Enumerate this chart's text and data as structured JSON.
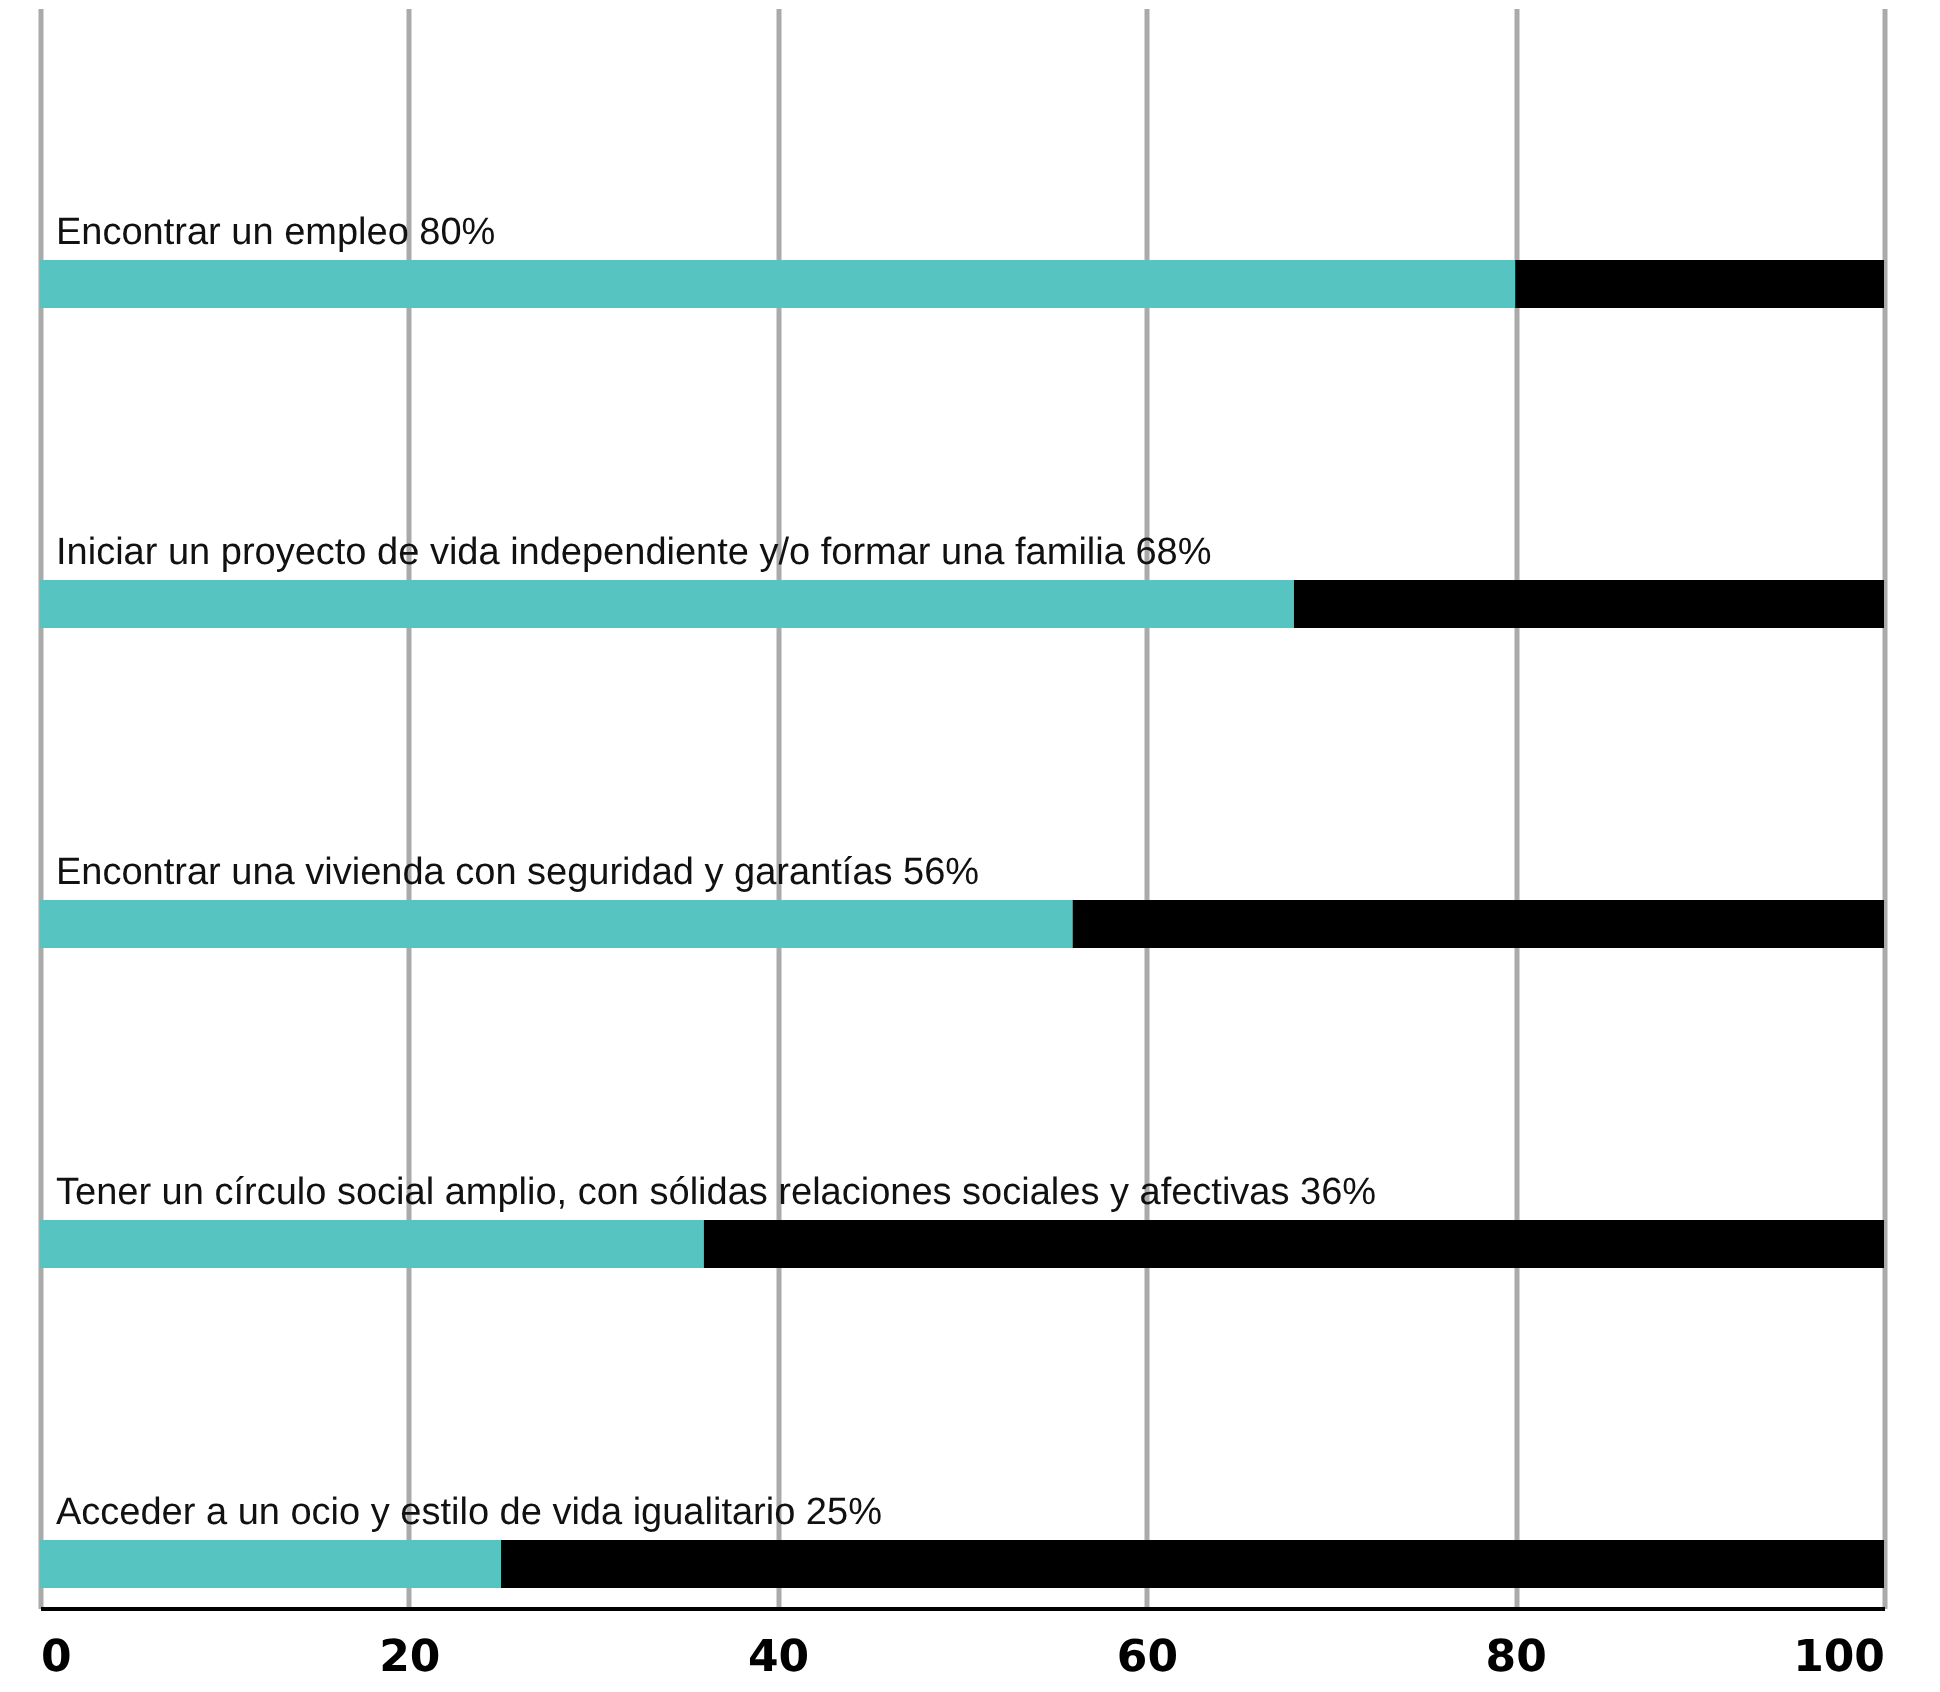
{
  "chart_data": {
    "type": "bar",
    "orientation": "horizontal",
    "stacked": true,
    "categories": [
      "Encontrar un empleo 80%",
      "Iniciar un proyecto de vida independiente y/o formar una familia 68%",
      "Encontrar una vivienda con seguridad y garantías 56%",
      "Tener un círculo social amplio, con sólidas relaciones sociales y afectivas 36%",
      "Acceder a un ocio y estilo de vida igualitario 25%"
    ],
    "series": [
      {
        "color": "#56c5c1",
        "values": [
          80,
          68,
          56,
          36,
          25
        ]
      },
      {
        "color": "#000000",
        "values": [
          20,
          32,
          44,
          64,
          75
        ]
      }
    ],
    "xlim": [
      0,
      100
    ],
    "xticks": [
      0,
      20,
      40,
      60,
      80,
      100
    ],
    "grid": "x",
    "legend": false
  }
}
